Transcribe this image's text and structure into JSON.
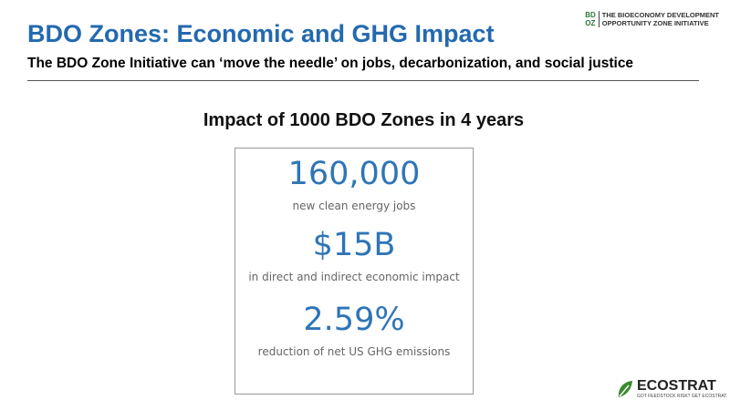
{
  "header": {
    "title": "BDO Zones: Economic and GHG Impact",
    "subtitle": "The BDO Zone Initiative can ‘move the needle’ on jobs, decarbonization, and social justice"
  },
  "logo": {
    "mark_top": "BD",
    "mark_bottom": "OZ",
    "line1": "THE BIOECONOMY DEVELOPMENT",
    "line2": "OPPORTUNITY ZONE INITIATIVE"
  },
  "impact": {
    "heading": "Impact of 1000 BDO Zones in 4 years",
    "stats": [
      {
        "value": "160,000",
        "label": "new clean energy jobs"
      },
      {
        "value": "$15B",
        "label": "in direct and indirect economic impact"
      },
      {
        "value": "2.59%",
        "label": "reduction of net US GHG emissions"
      }
    ]
  },
  "footer": {
    "brand": "ECOSTRAT",
    "tagline": "GOT FEEDSTOCK RISK? GET ECOSTRAT."
  }
}
